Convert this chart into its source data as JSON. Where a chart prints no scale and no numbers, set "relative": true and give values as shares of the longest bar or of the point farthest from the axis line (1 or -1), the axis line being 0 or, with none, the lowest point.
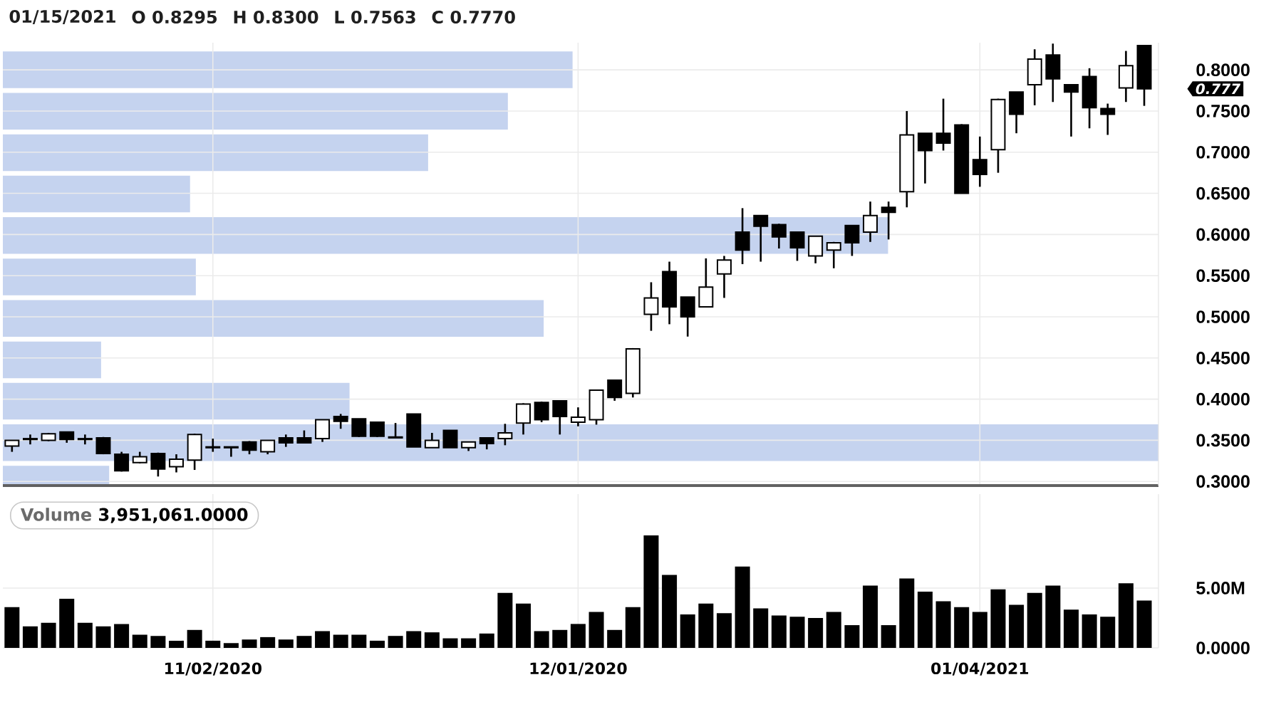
{
  "chart_data": [
    {
      "type": "candlestick",
      "title": "01/15/2021",
      "annotations": [
        "O 0.8295",
        "H 0.8300",
        "L 0.7563",
        "C 0.7770",
        "0.777"
      ],
      "categories": [
        null,
        null,
        null,
        null,
        null,
        null,
        null,
        null,
        null,
        null,
        null,
        null,
        null,
        null,
        null,
        null,
        null,
        null,
        null,
        null,
        null,
        null,
        null,
        null,
        null,
        null,
        null,
        null,
        null,
        null,
        null,
        null,
        null,
        null,
        null,
        null,
        null,
        null,
        null,
        null,
        null,
        null,
        null,
        null,
        null,
        null,
        null,
        null,
        null,
        null,
        null,
        null,
        null,
        null,
        null,
        null,
        null,
        null,
        null,
        null,
        null,
        null,
        null
      ],
      "ohlc": [
        [
          0.343,
          0.35,
          0.336,
          0.35
        ],
        [
          0.352,
          0.357,
          0.345,
          0.351
        ],
        [
          0.35,
          0.359,
          0.349,
          0.358
        ],
        [
          0.36,
          0.36,
          0.347,
          0.351
        ],
        [
          0.352,
          0.357,
          0.345,
          0.351
        ],
        [
          0.353,
          0.354,
          0.333,
          0.334
        ],
        [
          0.333,
          0.336,
          0.312,
          0.313
        ],
        [
          0.323,
          0.336,
          0.322,
          0.33
        ],
        [
          0.334,
          0.335,
          0.306,
          0.315
        ],
        [
          0.318,
          0.333,
          0.311,
          0.327
        ],
        [
          0.326,
          0.358,
          0.314,
          0.357
        ],
        [
          0.342,
          0.352,
          0.336,
          0.341
        ],
        [
          0.342,
          0.342,
          0.33,
          0.341
        ],
        [
          0.348,
          0.349,
          0.333,
          0.338
        ],
        [
          0.336,
          0.35,
          0.333,
          0.35
        ],
        [
          0.353,
          0.357,
          0.342,
          0.347
        ],
        [
          0.353,
          0.362,
          0.347,
          0.347
        ],
        [
          0.352,
          0.375,
          0.348,
          0.375
        ],
        [
          0.379,
          0.382,
          0.364,
          0.373
        ],
        [
          0.376,
          0.376,
          0.354,
          0.355
        ],
        [
          0.372,
          0.372,
          0.354,
          0.355
        ],
        [
          0.354,
          0.371,
          0.353,
          0.353
        ],
        [
          0.382,
          0.382,
          0.342,
          0.342
        ],
        [
          0.341,
          0.359,
          0.341,
          0.35
        ],
        [
          0.362,
          0.362,
          0.341,
          0.341
        ],
        [
          0.341,
          0.348,
          0.337,
          0.348
        ],
        [
          0.353,
          0.353,
          0.339,
          0.346
        ],
        [
          0.352,
          0.37,
          0.344,
          0.359
        ],
        [
          0.371,
          0.395,
          0.357,
          0.394
        ],
        [
          0.396,
          0.397,
          0.372,
          0.375
        ],
        [
          0.398,
          0.398,
          0.357,
          0.379
        ],
        [
          0.372,
          0.39,
          0.367,
          0.378
        ],
        [
          0.375,
          0.411,
          0.369,
          0.411
        ],
        [
          0.423,
          0.423,
          0.398,
          0.402
        ],
        [
          0.407,
          0.462,
          0.402,
          0.461
        ],
        [
          0.503,
          0.542,
          0.483,
          0.523
        ],
        [
          0.555,
          0.567,
          0.491,
          0.512
        ],
        [
          0.524,
          0.524,
          0.476,
          0.5
        ],
        [
          0.512,
          0.571,
          0.512,
          0.536
        ],
        [
          0.552,
          0.574,
          0.523,
          0.569
        ],
        [
          0.603,
          0.632,
          0.564,
          0.581
        ],
        [
          0.623,
          0.623,
          0.567,
          0.61
        ],
        [
          0.612,
          0.613,
          0.583,
          0.597
        ],
        [
          0.603,
          0.603,
          0.568,
          0.584
        ],
        [
          0.574,
          0.598,
          0.565,
          0.598
        ],
        [
          0.581,
          0.591,
          0.559,
          0.59
        ],
        [
          0.611,
          0.611,
          0.574,
          0.59
        ],
        [
          0.603,
          0.64,
          0.591,
          0.623
        ],
        [
          0.633,
          0.64,
          0.594,
          0.627
        ],
        [
          0.652,
          0.75,
          0.633,
          0.721
        ],
        [
          0.723,
          0.723,
          0.662,
          0.702
        ],
        [
          0.723,
          0.765,
          0.702,
          0.711
        ],
        [
          0.733,
          0.734,
          0.65,
          0.65
        ],
        [
          0.691,
          0.719,
          0.658,
          0.673
        ],
        [
          0.703,
          0.765,
          0.675,
          0.764
        ],
        [
          0.773,
          0.773,
          0.723,
          0.746
        ],
        [
          0.782,
          0.825,
          0.757,
          0.813
        ],
        [
          0.818,
          0.832,
          0.761,
          0.789
        ],
        [
          0.782,
          0.782,
          0.719,
          0.773
        ],
        [
          0.792,
          0.802,
          0.729,
          0.754
        ],
        [
          0.753,
          0.759,
          0.721,
          0.746
        ],
        [
          0.778,
          0.823,
          0.761,
          0.805
        ],
        [
          0.8295,
          0.83,
          0.7563,
          0.777
        ]
      ],
      "color": "#000000",
      "ylim": [
        0.295,
        0.833
      ],
      "yticks": [
        {
          "value": 0.3,
          "label": "0.3000"
        },
        {
          "value": 0.35,
          "label": "0.3500"
        },
        {
          "value": 0.4,
          "label": "0.4000"
        },
        {
          "value": 0.45,
          "label": "0.4500"
        },
        {
          "value": 0.5,
          "label": "0.5000"
        },
        {
          "value": 0.55,
          "label": "0.5500"
        },
        {
          "value": 0.6,
          "label": "0.6000"
        },
        {
          "value": 0.65,
          "label": "0.6500"
        },
        {
          "value": 0.7,
          "label": "0.7000"
        },
        {
          "value": 0.75,
          "label": "0.7500"
        },
        {
          "value": 0.8,
          "label": "0.8000"
        }
      ],
      "grid": true
    },
    {
      "type": "bar",
      "orientation": "horizontal",
      "relative": true,
      "categories": [
        null,
        null,
        null,
        null,
        null,
        null,
        null,
        null,
        null,
        null,
        null
      ],
      "values": [
        0.493,
        0.437,
        0.368,
        0.162,
        0.766,
        0.167,
        0.468,
        0.085,
        0.3,
        1,
        0.092
      ],
      "color": "#c5d3ef"
    },
    {
      "type": "bar",
      "title": "Volume",
      "annotations": [
        "3,951,061.0000"
      ],
      "categories": [
        null,
        null,
        null,
        null,
        null,
        null,
        null,
        null,
        null,
        null,
        null,
        "11/02/2020",
        null,
        null,
        null,
        null,
        null,
        null,
        null,
        null,
        null,
        null,
        null,
        null,
        null,
        null,
        null,
        null,
        null,
        null,
        null,
        "12/01/2020",
        null,
        null,
        null,
        null,
        null,
        null,
        null,
        null,
        null,
        null,
        null,
        null,
        null,
        null,
        null,
        null,
        null,
        null,
        null,
        null,
        null,
        "01/04/2021",
        null,
        null,
        null,
        null,
        null,
        null,
        null,
        null,
        null
      ],
      "values": [
        3.4,
        1.8,
        2.1,
        4.1,
        2.1,
        1.8,
        2.0,
        1.1,
        1.0,
        0.6,
        1.5,
        0.6,
        0.4,
        0.7,
        0.9,
        0.7,
        1.0,
        1.4,
        1.1,
        1.1,
        0.6,
        1.0,
        1.4,
        1.3,
        0.8,
        0.8,
        1.2,
        4.6,
        3.7,
        1.4,
        1.5,
        2.0,
        3.0,
        1.5,
        3.4,
        9.4,
        6.1,
        2.8,
        3.7,
        2.9,
        6.8,
        3.3,
        2.7,
        2.6,
        2.5,
        3.0,
        1.9,
        5.2,
        1.9,
        5.8,
        4.7,
        3.9,
        3.4,
        3.0,
        4.9,
        3.6,
        4.6,
        5.2,
        3.2,
        2.8,
        2.6,
        5.4,
        3.95
      ],
      "color": "#000000",
      "ylim": [
        0,
        12.85
      ],
      "yticks": [
        {
          "value": 0,
          "label": "0.0000"
        },
        {
          "value": 5,
          "label": "5.00M"
        }
      ],
      "grid": true
    }
  ]
}
